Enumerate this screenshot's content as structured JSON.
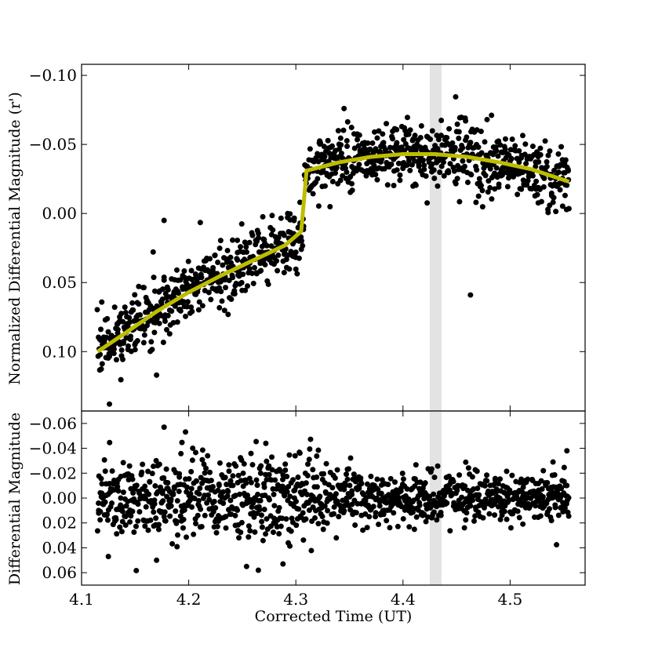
{
  "chart_data": [
    {
      "type": "scatter",
      "panel": "top",
      "xlabel": "",
      "ylabel": "Normalized Differential Magnitude (r')",
      "xlim": [
        4.1,
        4.57
      ],
      "ylim": [
        0.143,
        -0.108
      ],
      "y_inverted": true,
      "grid": false,
      "x_ticks": [
        4.1,
        4.2,
        4.3,
        4.4,
        4.5
      ],
      "y_ticks": [
        -0.1,
        -0.05,
        0.0,
        0.05,
        0.1
      ],
      "y_tick_labels": [
        "−0.10",
        "−0.05",
        "0.00",
        "0.05",
        "0.10"
      ],
      "highlight_band": {
        "x_range": [
          4.425,
          4.436
        ],
        "color": "#e3e3e3"
      },
      "point_color": "#000000",
      "model_color": "#bdbd00",
      "n_points": 1100,
      "data_trend": {
        "before_step": {
          "x": [
            4.115,
            4.15,
            4.2,
            4.25,
            4.3,
            4.305
          ],
          "y": [
            0.1,
            0.08,
            0.057,
            0.037,
            0.019,
            0.014
          ]
        },
        "after_step": {
          "x": [
            4.31,
            4.35,
            4.4,
            4.45,
            4.5,
            4.555
          ],
          "y": [
            -0.031,
            -0.039,
            -0.043,
            -0.042,
            -0.036,
            -0.023
          ]
        },
        "scatter_sigma": 0.011,
        "outliers": [
          {
            "x": 4.463,
            "y": 0.059
          },
          {
            "x": 4.177,
            "y": 0.005
          },
          {
            "x": 4.126,
            "y": 0.138
          },
          {
            "x": 4.17,
            "y": 0.117
          },
          {
            "x": 4.345,
            "y": -0.076
          }
        ]
      },
      "series": [
        {
          "name": "",
          "role": "model",
          "x": [
            4.115,
            4.14,
            4.17,
            4.2,
            4.23,
            4.26,
            4.29,
            4.305,
            4.31,
            4.34,
            4.37,
            4.4,
            4.43,
            4.46,
            4.49,
            4.52,
            4.555
          ],
          "y": [
            0.1,
            0.087,
            0.071,
            0.057,
            0.045,
            0.034,
            0.023,
            0.013,
            -0.031,
            -0.037,
            -0.041,
            -0.043,
            -0.043,
            -0.041,
            -0.037,
            -0.032,
            -0.023
          ]
        }
      ]
    },
    {
      "type": "scatter",
      "panel": "bottom",
      "xlabel": "Corrected Time (UT)",
      "ylabel": "Differential Magnitude",
      "xlim": [
        4.1,
        4.57
      ],
      "ylim": [
        0.07,
        -0.07
      ],
      "y_inverted": true,
      "grid": false,
      "x_ticks": [
        4.1,
        4.2,
        4.3,
        4.4,
        4.5
      ],
      "x_tick_labels": [
        "4.1",
        "4.2",
        "4.3",
        "4.4",
        "4.5"
      ],
      "y_ticks": [
        -0.06,
        -0.04,
        -0.02,
        0.0,
        0.02,
        0.04,
        0.06
      ],
      "y_tick_labels": [
        "−0.06",
        "−0.04",
        "−0.02",
        "0.00",
        "0.02",
        "0.04",
        "0.06"
      ],
      "highlight_band": {
        "x_range": [
          4.425,
          4.436
        ],
        "color": "#e3e3e3"
      },
      "point_color": "#000000",
      "n_points": 1100,
      "data_trend": {
        "mean": 0.0,
        "scatter_sigma_early": 0.017,
        "scatter_sigma_late": 0.01,
        "outliers": [
          {
            "x": 4.177,
            "y": -0.057
          },
          {
            "x": 4.265,
            "y": 0.058
          },
          {
            "x": 4.254,
            "y": 0.055
          },
          {
            "x": 4.288,
            "y": 0.053
          },
          {
            "x": 4.125,
            "y": 0.047
          },
          {
            "x": 4.17,
            "y": 0.05
          },
          {
            "x": 4.272,
            "y": -0.044
          },
          {
            "x": 4.553,
            "y": -0.038
          }
        ]
      }
    }
  ]
}
